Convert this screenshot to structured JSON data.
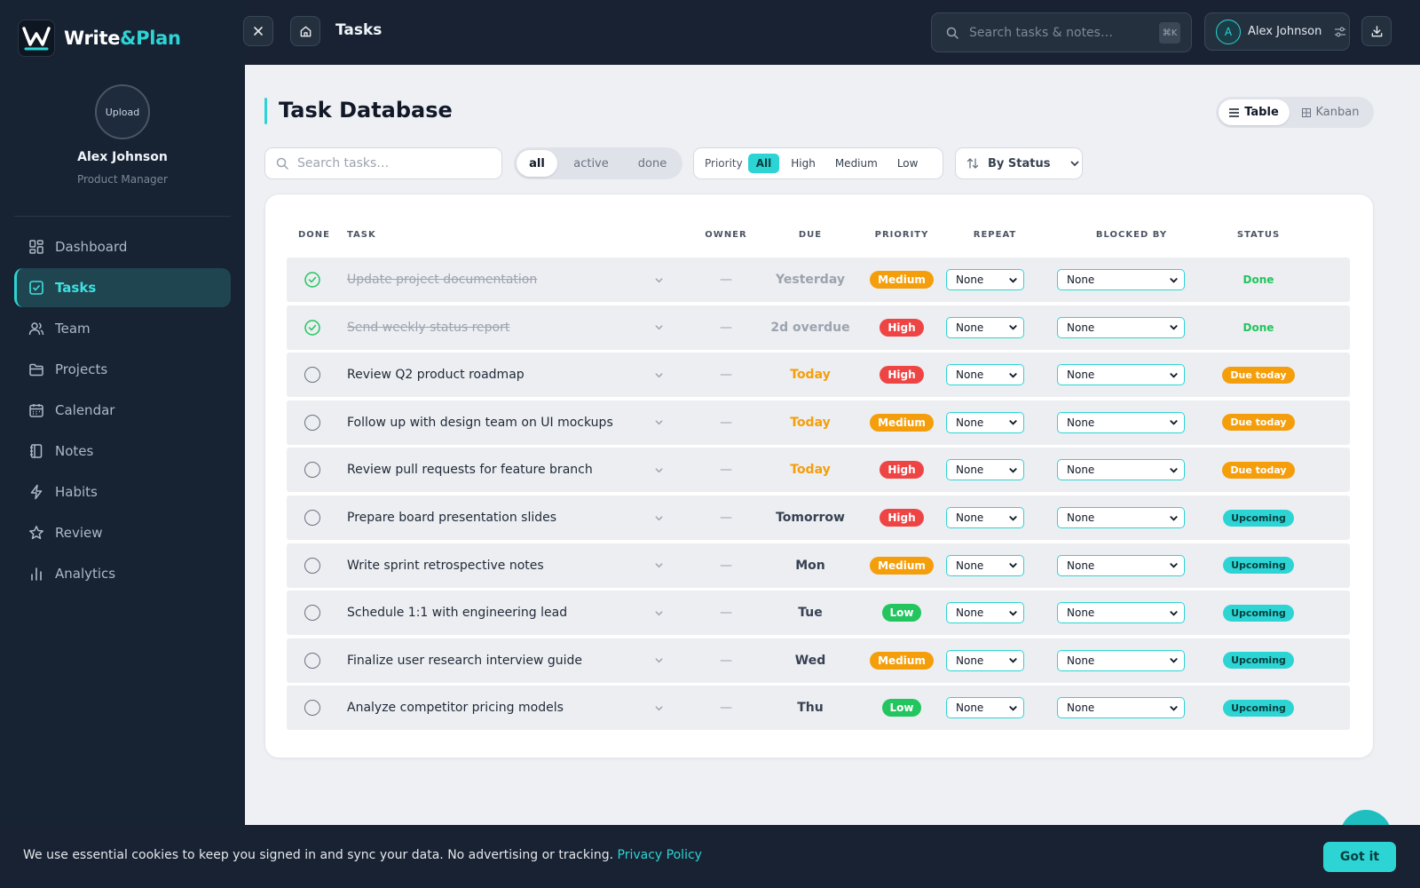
{
  "app": {
    "name_part1": "Write",
    "name_part2": "&Plan"
  },
  "sidebar": {
    "upload_label": "Upload",
    "user_name": "Alex Johnson",
    "user_role": "Product Manager",
    "items": [
      {
        "label": "Dashboard",
        "icon": "dashboard-icon"
      },
      {
        "label": "Tasks",
        "icon": "check-square-icon",
        "active": true
      },
      {
        "label": "Team",
        "icon": "users-icon"
      },
      {
        "label": "Projects",
        "icon": "folder-icon"
      },
      {
        "label": "Calendar",
        "icon": "calendar-icon"
      },
      {
        "label": "Notes",
        "icon": "notebook-icon"
      },
      {
        "label": "Habits",
        "icon": "lightning-icon"
      },
      {
        "label": "Review",
        "icon": "star-icon"
      },
      {
        "label": "Analytics",
        "icon": "bar-chart-icon"
      }
    ]
  },
  "topbar": {
    "title": "Tasks",
    "search_placeholder": "Search tasks & notes…",
    "shortcut": "⌘K",
    "user_initial": "A",
    "user_name": "Alex Johnson"
  },
  "main": {
    "title": "Task Database",
    "view_table": "Table",
    "view_kanban": "Kanban",
    "search_placeholder": "Search tasks…",
    "filters": [
      "all",
      "active",
      "done"
    ],
    "priority_label": "Priority",
    "priority_options": [
      "All",
      "High",
      "Medium",
      "Low"
    ],
    "sort_label": "By Status"
  },
  "table": {
    "headers": {
      "done": "DONE",
      "task": "TASK",
      "owner": "OWNER",
      "due": "DUE",
      "priority": "PRIORITY",
      "repeat": "REPEAT",
      "blocked_by": "BLOCKED BY",
      "status": "STATUS"
    },
    "rows": [
      {
        "done": true,
        "task": "Update project documentation",
        "owner": "—",
        "due": "Yesterday",
        "due_color": "#9ca3af",
        "priority": "Medium",
        "repeat": "None",
        "blocked_by": "None",
        "status": "Done"
      },
      {
        "done": true,
        "task": "Send weekly status report",
        "owner": "—",
        "due": "2d overdue",
        "due_color": "#9ca3af",
        "priority": "High",
        "repeat": "None",
        "blocked_by": "None",
        "status": "Done"
      },
      {
        "done": false,
        "task": "Review Q2 product roadmap",
        "owner": "—",
        "due": "Today",
        "due_color": "#f59e0b",
        "priority": "High",
        "repeat": "None",
        "blocked_by": "None",
        "status": "Due today"
      },
      {
        "done": false,
        "task": "Follow up with design team on UI mockups",
        "owner": "—",
        "due": "Today",
        "due_color": "#f59e0b",
        "priority": "Medium",
        "repeat": "None",
        "blocked_by": "None",
        "status": "Due today"
      },
      {
        "done": false,
        "task": "Review pull requests for feature branch",
        "owner": "—",
        "due": "Today",
        "due_color": "#f59e0b",
        "priority": "High",
        "repeat": "None",
        "blocked_by": "None",
        "status": "Due today"
      },
      {
        "done": false,
        "task": "Prepare board presentation slides",
        "owner": "—",
        "due": "Tomorrow",
        "due_color": "#374151",
        "priority": "High",
        "repeat": "None",
        "blocked_by": "None",
        "status": "Upcoming"
      },
      {
        "done": false,
        "task": "Write sprint retrospective notes",
        "owner": "—",
        "due": "Mon",
        "due_color": "#374151",
        "priority": "Medium",
        "repeat": "None",
        "blocked_by": "None",
        "status": "Upcoming"
      },
      {
        "done": false,
        "task": "Schedule 1:1 with engineering lead",
        "owner": "—",
        "due": "Tue",
        "due_color": "#374151",
        "priority": "Low",
        "repeat": "None",
        "blocked_by": "None",
        "status": "Upcoming"
      },
      {
        "done": false,
        "task": "Finalize user research interview guide",
        "owner": "—",
        "due": "Wed",
        "due_color": "#374151",
        "priority": "Medium",
        "repeat": "None",
        "blocked_by": "None",
        "status": "Upcoming"
      },
      {
        "done": false,
        "task": "Analyze competitor pricing models",
        "owner": "—",
        "due": "Thu",
        "due_color": "#374151",
        "priority": "Low",
        "repeat": "None",
        "blocked_by": "None",
        "status": "Upcoming"
      }
    ]
  },
  "colors": {
    "accent": "#2dd4d4",
    "priority_high": "#ef4444",
    "priority_medium": "#f59e0b",
    "priority_low": "#22c55e",
    "status_due_today": "#f59e0b",
    "status_upcoming": "#2dd4d4"
  },
  "cookie": {
    "text": "We use essential cookies to keep you signed in and sync your data. No advertising or tracking.",
    "link": "Privacy Policy",
    "button": "Got it"
  }
}
